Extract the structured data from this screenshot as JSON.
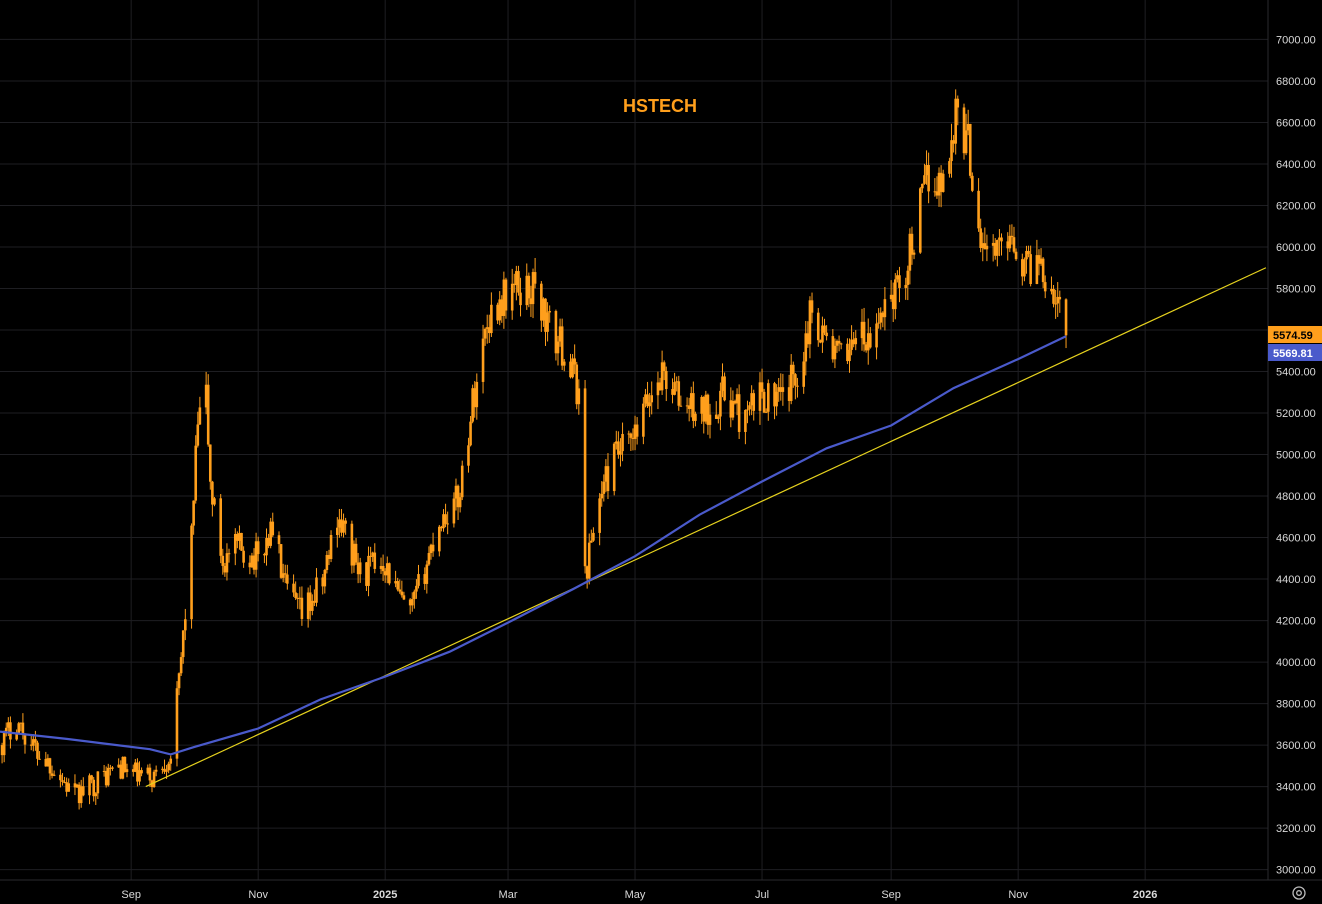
{
  "chart_data": {
    "type": "candlestick",
    "title": "HSTECH",
    "xlabel": "",
    "ylabel": "",
    "y_ticks": [
      "7000.00",
      "6800.00",
      "6600.00",
      "6400.00",
      "6200.00",
      "6000.00",
      "5800.00",
      "5600.00",
      "5400.00",
      "5200.00",
      "5000.00",
      "4800.00",
      "4600.00",
      "4400.00",
      "4200.00",
      "4000.00",
      "3800.00",
      "3600.00",
      "3400.00",
      "3200.00",
      "3000.00"
    ],
    "x_ticks": [
      {
        "label": "Sep",
        "date": "2024-09-01"
      },
      {
        "label": "Nov",
        "date": "2024-11-01"
      },
      {
        "label": "2025",
        "date": "2025-01-01",
        "bold": true
      },
      {
        "label": "Mar",
        "date": "2025-03-01"
      },
      {
        "label": "May",
        "date": "2025-05-01"
      },
      {
        "label": "Jul",
        "date": "2025-07-01"
      },
      {
        "label": "Sep",
        "date": "2025-09-01"
      },
      {
        "label": "Nov",
        "date": "2025-11-01"
      },
      {
        "label": "2026",
        "date": "2026-01-01",
        "bold": true
      }
    ],
    "ylim": [
      2950,
      7190
    ],
    "xlim": [
      "2024-06-30",
      "2026-03-01"
    ],
    "grid": true,
    "price_series": {
      "points": [
        [
          "2024-06-30",
          3600
        ],
        [
          "2024-07-08",
          3720
        ],
        [
          "2024-07-15",
          3600
        ],
        [
          "2024-07-25",
          3500
        ],
        [
          "2024-08-05",
          3350
        ],
        [
          "2024-08-15",
          3420
        ],
        [
          "2024-08-26",
          3500
        ],
        [
          "2024-09-02",
          3460
        ],
        [
          "2024-09-11",
          3440
        ],
        [
          "2024-09-20",
          3560
        ],
        [
          "2024-09-24",
          3900
        ],
        [
          "2024-09-30",
          4600
        ],
        [
          "2024-10-03",
          5150
        ],
        [
          "2024-10-07",
          5280
        ],
        [
          "2024-10-09",
          4850
        ],
        [
          "2024-10-15",
          4480
        ],
        [
          "2024-10-22",
          4550
        ],
        [
          "2024-11-01",
          4500
        ],
        [
          "2024-11-08",
          4650
        ],
        [
          "2024-11-14",
          4350
        ],
        [
          "2024-11-22",
          4220
        ],
        [
          "2024-12-02",
          4380
        ],
        [
          "2024-12-09",
          4720
        ],
        [
          "2024-12-20",
          4420
        ],
        [
          "2024-12-31",
          4500
        ],
        [
          "2025-01-08",
          4300
        ],
        [
          "2025-01-13",
          4220
        ],
        [
          "2025-01-20",
          4450
        ],
        [
          "2025-01-27",
          4680
        ],
        [
          "2025-02-05",
          4780
        ],
        [
          "2025-02-12",
          5250
        ],
        [
          "2025-02-19",
          5650
        ],
        [
          "2025-02-26",
          5750
        ],
        [
          "2025-03-03",
          5800
        ],
        [
          "2025-03-07",
          5800
        ],
        [
          "2025-03-14",
          5800
        ],
        [
          "2025-03-21",
          5600
        ],
        [
          "2025-03-28",
          5500
        ],
        [
          "2025-04-04",
          5300
        ],
        [
          "2025-04-07",
          4420
        ],
        [
          "2025-04-14",
          4800
        ],
        [
          "2025-04-22",
          5000
        ],
        [
          "2025-04-30",
          5050
        ],
        [
          "2025-05-07",
          5250
        ],
        [
          "2025-05-14",
          5400
        ],
        [
          "2025-05-23",
          5250
        ],
        [
          "2025-06-03",
          5200
        ],
        [
          "2025-06-13",
          5300
        ],
        [
          "2025-06-23",
          5150
        ],
        [
          "2025-06-30",
          5300
        ],
        [
          "2025-07-10",
          5250
        ],
        [
          "2025-07-18",
          5400
        ],
        [
          "2025-07-25",
          5700
        ],
        [
          "2025-08-01",
          5550
        ],
        [
          "2025-08-08",
          5450
        ],
        [
          "2025-08-15",
          5600
        ],
        [
          "2025-08-22",
          5500
        ],
        [
          "2025-08-29",
          5750
        ],
        [
          "2025-09-05",
          5800
        ],
        [
          "2025-09-12",
          6050
        ],
        [
          "2025-09-19",
          6350
        ],
        [
          "2025-09-26",
          6300
        ],
        [
          "2025-10-02",
          6650
        ],
        [
          "2025-10-08",
          6500
        ],
        [
          "2025-10-14",
          6050
        ],
        [
          "2025-10-21",
          5950
        ],
        [
          "2025-10-28",
          6100
        ],
        [
          "2025-11-04",
          5900
        ],
        [
          "2025-11-11",
          5950
        ],
        [
          "2025-11-18",
          5800
        ],
        [
          "2025-11-24",
          5574.59
        ]
      ]
    },
    "moving_average": {
      "points": [
        [
          "2024-06-30",
          3665
        ],
        [
          "2024-08-01",
          3630
        ],
        [
          "2024-09-10",
          3580
        ],
        [
          "2024-09-20",
          3555
        ],
        [
          "2024-10-01",
          3590
        ],
        [
          "2024-11-01",
          3680
        ],
        [
          "2024-12-01",
          3820
        ],
        [
          "2025-01-01",
          3930
        ],
        [
          "2025-02-01",
          4050
        ],
        [
          "2025-03-01",
          4190
        ],
        [
          "2025-04-01",
          4350
        ],
        [
          "2025-05-01",
          4510
        ],
        [
          "2025-06-01",
          4710
        ],
        [
          "2025-07-01",
          4870
        ],
        [
          "2025-08-01",
          5030
        ],
        [
          "2025-09-01",
          5140
        ],
        [
          "2025-10-01",
          5320
        ],
        [
          "2025-11-01",
          5460
        ],
        [
          "2025-11-24",
          5569.81
        ]
      ]
    },
    "trendline": {
      "start": [
        "2024-09-08",
        3400
      ],
      "end": [
        "2026-02-28",
        5900
      ]
    },
    "last_price": "5574.59",
    "ma_value": "5569.81"
  },
  "colors": {
    "background": "#000000",
    "candle": "#ff9f1c",
    "moving_average": "#4a5acb",
    "trendline": "#e6d21e",
    "price_tag_bg": "#ff9f1c",
    "ma_tag_bg": "#4a5acb"
  },
  "icons": {
    "settings": "settings-icon"
  }
}
